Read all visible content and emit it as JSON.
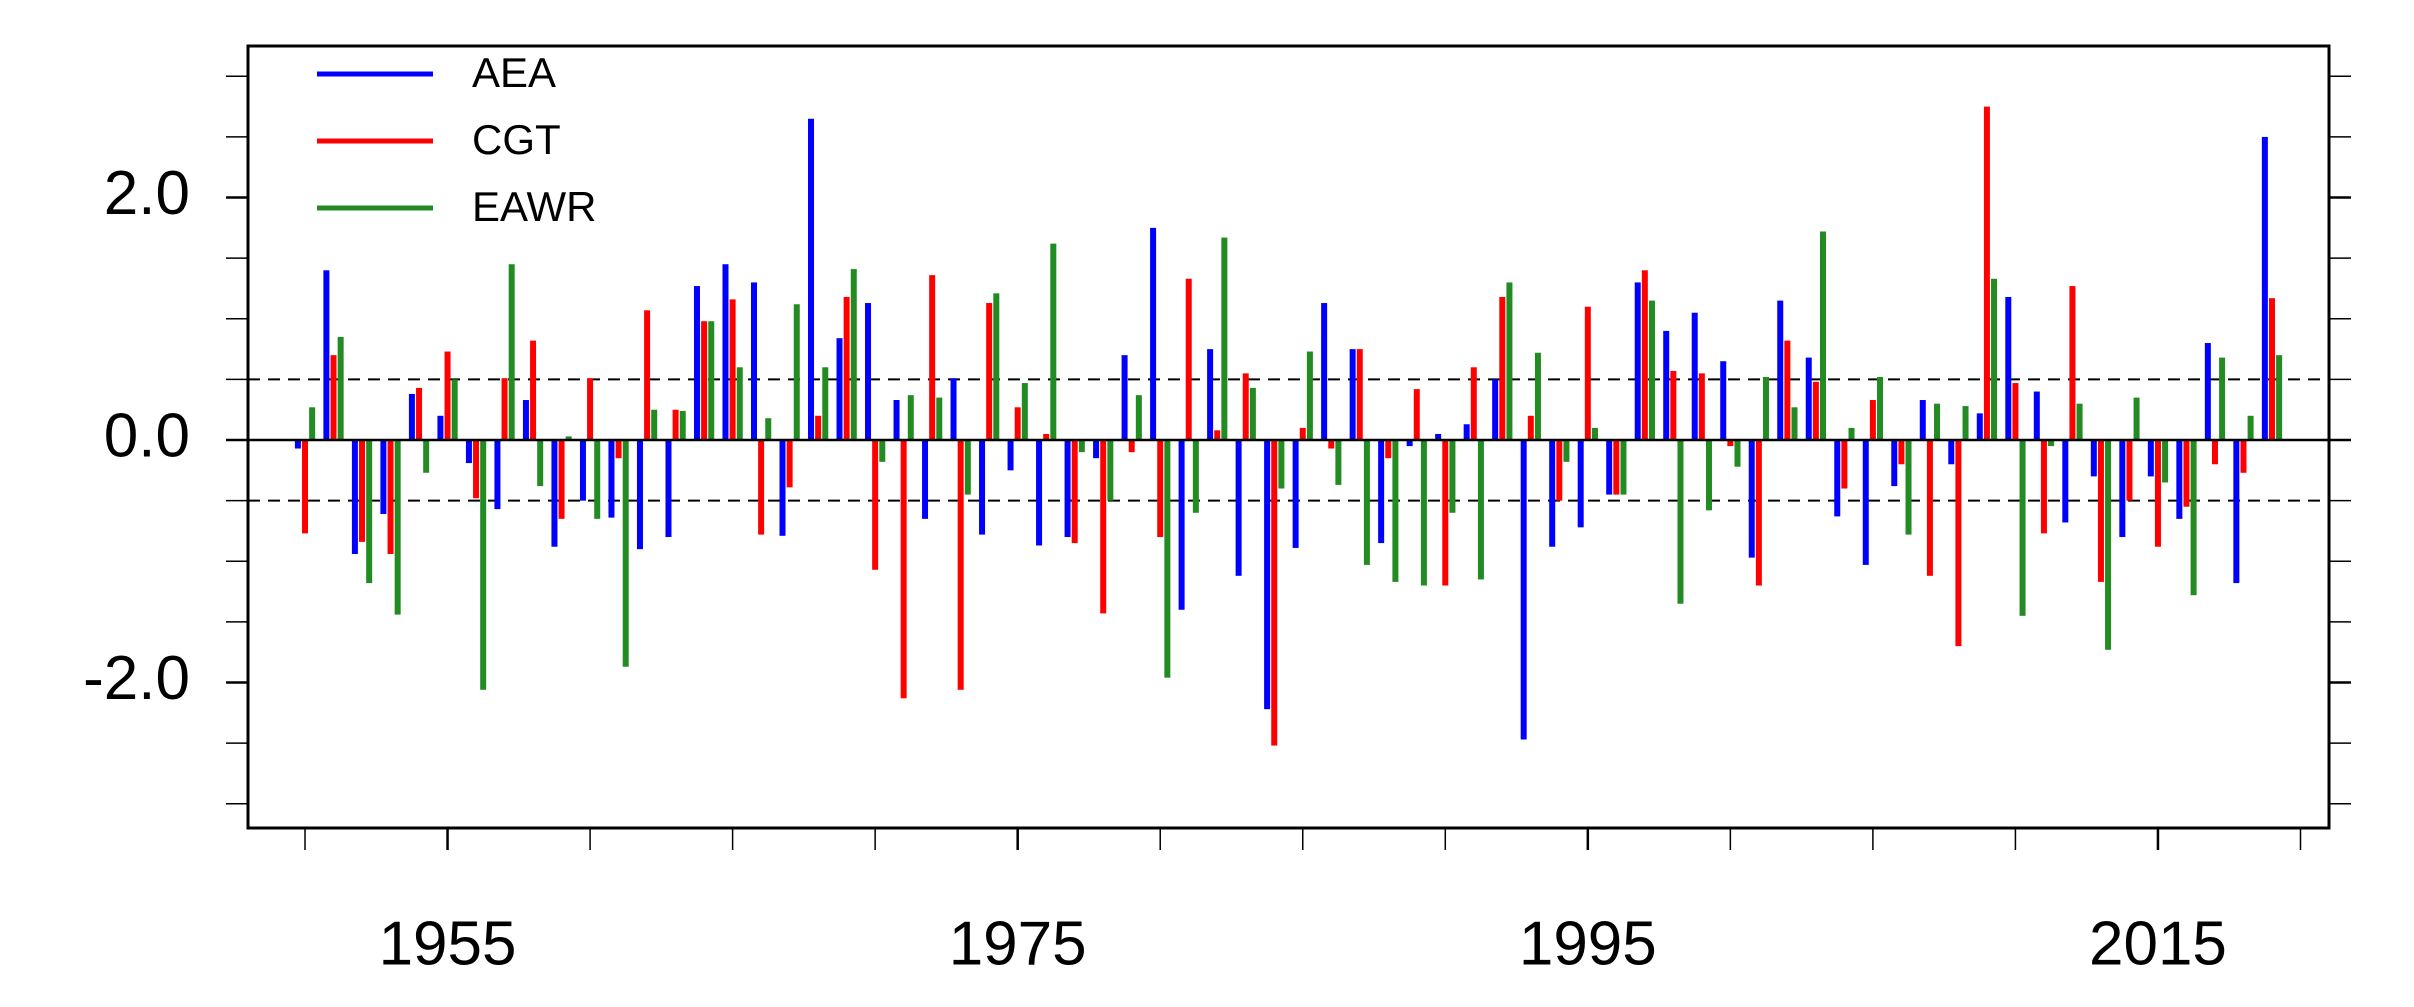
{
  "chart_data": {
    "type": "bar",
    "x": [
      1950,
      1951,
      1952,
      1953,
      1954,
      1955,
      1956,
      1957,
      1958,
      1959,
      1960,
      1961,
      1962,
      1963,
      1964,
      1965,
      1966,
      1967,
      1968,
      1969,
      1970,
      1971,
      1972,
      1973,
      1974,
      1975,
      1976,
      1977,
      1978,
      1979,
      1980,
      1981,
      1982,
      1983,
      1984,
      1985,
      1986,
      1987,
      1988,
      1989,
      1990,
      1991,
      1992,
      1993,
      1994,
      1995,
      1996,
      1997,
      1998,
      1999,
      2000,
      2001,
      2002,
      2003,
      2004,
      2005,
      2006,
      2007,
      2008,
      2009,
      2010,
      2011,
      2012,
      2013,
      2014,
      2015,
      2016,
      2017,
      2018,
      2019
    ],
    "series": [
      {
        "name": "AEA",
        "color": "#0000ff",
        "values": [
          -0.07,
          1.4,
          -0.94,
          -0.61,
          0.38,
          0.2,
          -0.19,
          -0.57,
          0.33,
          -0.88,
          -0.5,
          -0.64,
          -0.9,
          -0.8,
          1.27,
          1.45,
          1.3,
          -0.79,
          2.65,
          0.84,
          1.13,
          0.33,
          -0.65,
          0.51,
          -0.78,
          -0.25,
          -0.87,
          -0.8,
          -0.15,
          0.7,
          1.75,
          -1.4,
          0.75,
          -1.12,
          -2.22,
          -0.89,
          1.13,
          0.75,
          -0.85,
          -0.05,
          0.05,
          0.13,
          0.5,
          -2.47,
          -0.88,
          -0.72,
          -0.45,
          1.3,
          0.9,
          1.05,
          0.65,
          -0.97,
          1.15,
          0.68,
          -0.63,
          -1.03,
          -0.38,
          0.33,
          -0.2,
          0.22,
          1.18,
          0.4,
          -0.68,
          -0.3,
          -0.8,
          -0.3,
          -0.65,
          0.8,
          -1.18,
          2.5
        ]
      },
      {
        "name": "CGT",
        "color": "#ff0000",
        "values": [
          -0.77,
          0.7,
          -0.84,
          -0.94,
          0.43,
          0.73,
          -0.48,
          0.51,
          0.82,
          -0.65,
          0.51,
          -0.15,
          1.07,
          0.25,
          0.98,
          1.16,
          -0.78,
          -0.39,
          0.2,
          1.18,
          -1.07,
          -2.13,
          1.36,
          -2.06,
          1.13,
          0.27,
          0.05,
          -0.85,
          -1.43,
          -0.1,
          -0.8,
          1.33,
          0.08,
          0.55,
          -2.52,
          0.1,
          -0.07,
          0.75,
          -0.15,
          0.42,
          -1.2,
          0.6,
          1.18,
          0.2,
          -0.5,
          1.1,
          -0.45,
          1.4,
          0.57,
          0.55,
          -0.05,
          -1.2,
          0.82,
          0.48,
          -0.4,
          0.33,
          -0.2,
          -1.12,
          -1.7,
          2.75,
          0.47,
          -0.77,
          1.27,
          -1.17,
          -0.5,
          -0.88,
          -0.55,
          -0.2,
          -0.27,
          1.17
        ]
      },
      {
        "name": "EAWR",
        "color": "#228b22",
        "values": [
          0.27,
          0.85,
          -1.18,
          -1.44,
          -0.27,
          0.5,
          -2.06,
          1.45,
          -0.38,
          0.03,
          -0.65,
          -1.87,
          0.25,
          0.24,
          0.98,
          0.6,
          0.18,
          1.12,
          0.6,
          1.41,
          -0.18,
          0.37,
          0.35,
          -0.45,
          1.21,
          0.47,
          1.62,
          -0.1,
          -0.5,
          0.37,
          -1.96,
          -0.6,
          1.67,
          0.43,
          -0.4,
          0.73,
          -0.37,
          -1.03,
          -1.17,
          -1.2,
          -0.6,
          -1.15,
          1.3,
          0.72,
          -0.18,
          0.1,
          -0.45,
          1.15,
          -1.35,
          -0.58,
          -0.22,
          0.52,
          0.27,
          1.72,
          0.1,
          0.52,
          -0.78,
          0.3,
          0.28,
          1.33,
          -1.45,
          -0.05,
          0.3,
          -1.73,
          0.35,
          -0.35,
          -1.28,
          0.68,
          0.2,
          0.7
        ]
      }
    ],
    "xlim": [
      1948,
      2021
    ],
    "xticks": [
      1955,
      1975,
      1995,
      2015
    ],
    "xminor_ticks": [
      1950,
      1960,
      1965,
      1970,
      1980,
      1985,
      1990,
      2000,
      2005,
      2010,
      2020
    ],
    "ylim": [
      -3.2,
      3.25
    ],
    "yticks": [
      {
        "value": -2,
        "label": "-2.0"
      },
      {
        "value": 0,
        "label": "0.0"
      },
      {
        "value": 2,
        "label": "2.0"
      }
    ],
    "yminor_ticks": [
      -3,
      -2.5,
      -1.5,
      -1,
      -0.5,
      0.5,
      1,
      1.5,
      2.5,
      3
    ],
    "reference_lines": [
      0.5,
      -0.5
    ],
    "legend": "upper left"
  }
}
